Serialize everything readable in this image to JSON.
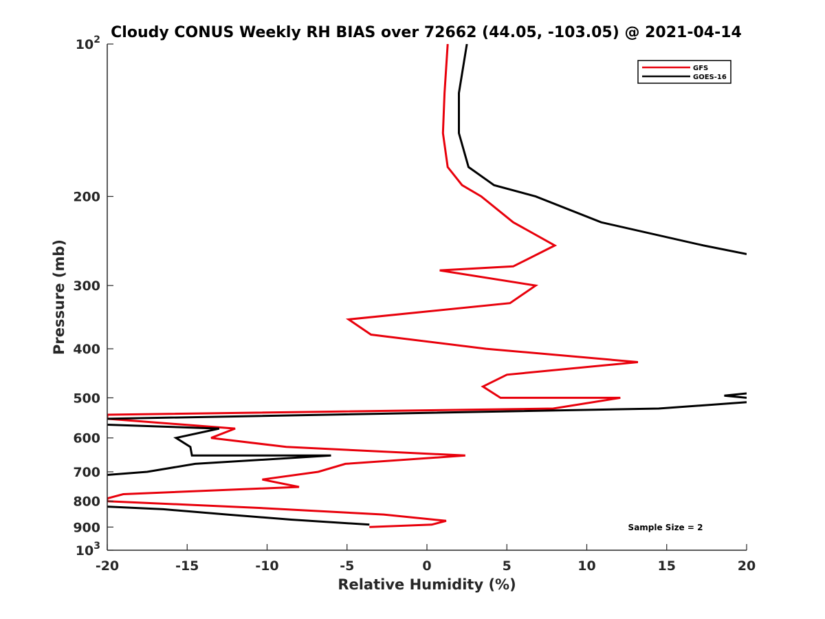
{
  "colors": {
    "GFS": "#e8000b",
    "GOES-16": "#000000",
    "axis": "#262626"
  },
  "chart_data": {
    "type": "line",
    "title": "Cloudy CONUS Weekly RH BIAS over 72662 (44.05, -103.05) @ 2021-04-14",
    "xlabel": "Relative Humidity (%)",
    "ylabel": "Pressure (mb)",
    "xlim": [
      -20,
      20
    ],
    "ylim": [
      100,
      1000
    ],
    "y_scale": "log",
    "y_direction": "reversed",
    "grid": false,
    "legend_position": "top-right",
    "x_ticks": [
      "-20",
      "-15",
      "-10",
      "-5",
      "0",
      "5",
      "10",
      "15",
      "20"
    ],
    "y_ticks": [
      {
        "value": 100,
        "base": "10",
        "exp": "2"
      },
      {
        "value": 200,
        "label": "200"
      },
      {
        "value": 300,
        "label": "300"
      },
      {
        "value": 400,
        "label": "400"
      },
      {
        "value": 500,
        "label": "500"
      },
      {
        "value": 600,
        "label": "600"
      },
      {
        "value": 700,
        "label": "700"
      },
      {
        "value": 800,
        "label": "800"
      },
      {
        "value": 900,
        "label": "900"
      },
      {
        "value": 1000,
        "base": "10",
        "exp": "3"
      }
    ],
    "annotation": "Sample Size = 2",
    "series": [
      {
        "name": "GFS",
        "points": [
          [
            1.3,
            100
          ],
          [
            1.1,
            125
          ],
          [
            1.0,
            150
          ],
          [
            1.3,
            175
          ],
          [
            2.2,
            190
          ],
          [
            3.4,
            200
          ],
          [
            5.4,
            225
          ],
          [
            8.0,
            250
          ],
          [
            5.4,
            275
          ],
          [
            0.8,
            280
          ],
          [
            6.8,
            300
          ],
          [
            5.2,
            325
          ],
          [
            -4.9,
            350
          ],
          [
            -3.5,
            375
          ],
          [
            3.7,
            400
          ],
          [
            13.2,
            425
          ],
          [
            5.0,
            450
          ],
          [
            3.5,
            475
          ],
          [
            4.6,
            500
          ],
          [
            12.1,
            500
          ],
          [
            7.9,
            525
          ],
          [
            -20.0,
            540
          ],
          [
            -20.0,
            550
          ],
          [
            -12.0,
            575
          ],
          [
            -13.5,
            600
          ],
          [
            -8.8,
            625
          ],
          [
            2.4,
            650
          ],
          [
            -5.1,
            675
          ],
          [
            -6.8,
            700
          ],
          [
            -10.3,
            725
          ],
          [
            -8.0,
            750
          ],
          [
            -19.0,
            775
          ],
          [
            -20.0,
            790
          ],
          [
            -20.0,
            800
          ],
          [
            -10.5,
            825
          ],
          [
            -2.7,
            850
          ],
          [
            1.2,
            875
          ],
          [
            0.3,
            890
          ],
          [
            -3.6,
            900
          ]
        ]
      },
      {
        "name": "GOES-16",
        "points": [
          [
            2.5,
            100
          ],
          [
            2.0,
            125
          ],
          [
            2.0,
            150
          ],
          [
            2.6,
            175
          ],
          [
            4.2,
            190
          ],
          [
            6.8,
            200
          ],
          [
            10.9,
            225
          ],
          [
            17.3,
            250
          ],
          [
            20.0,
            260
          ],
          [
            null,
            null
          ],
          [
            20.0,
            490
          ],
          [
            18.6,
            495
          ],
          [
            20.0,
            500
          ],
          [
            null,
            null
          ],
          [
            20.0,
            510
          ],
          [
            14.5,
            525
          ],
          [
            -20.0,
            550
          ],
          [
            null,
            null
          ],
          [
            -20.0,
            565
          ],
          [
            -13.0,
            575
          ],
          [
            -15.7,
            600
          ],
          [
            -14.8,
            625
          ],
          [
            -14.7,
            650
          ],
          [
            -6.0,
            650
          ],
          [
            -14.5,
            675
          ],
          [
            -17.5,
            700
          ],
          [
            -20.0,
            710
          ],
          [
            null,
            null
          ],
          [
            -20.0,
            820
          ],
          [
            -16.5,
            830
          ],
          [
            -12.5,
            850
          ],
          [
            -8.5,
            870
          ],
          [
            -3.6,
            890
          ]
        ]
      }
    ]
  }
}
